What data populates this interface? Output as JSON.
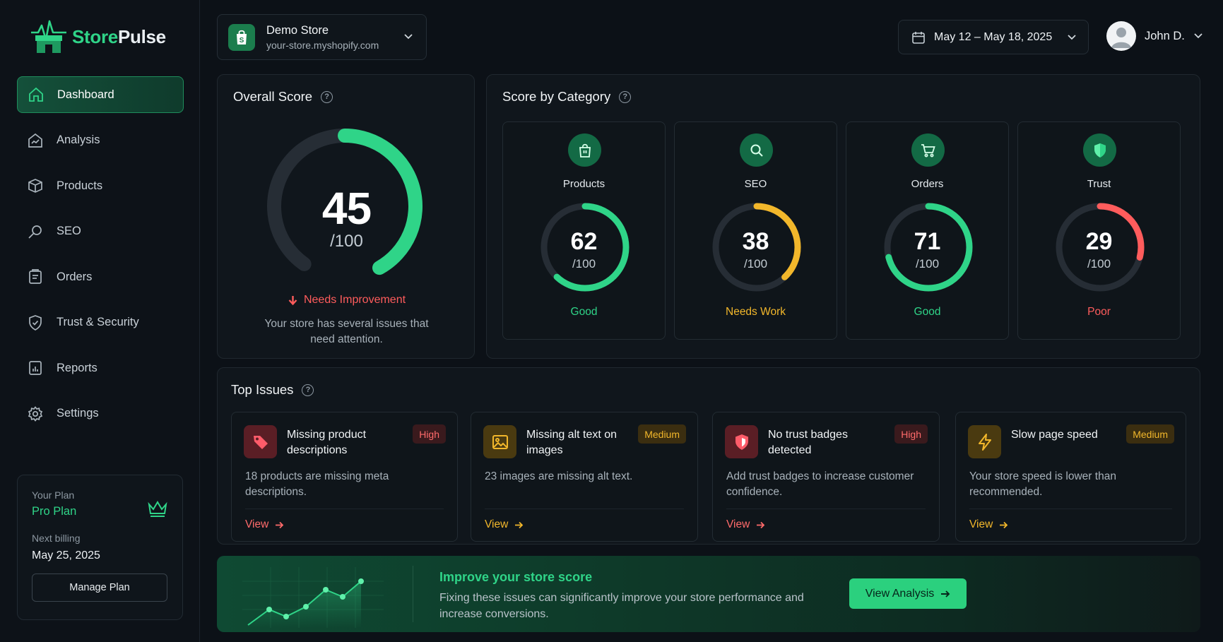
{
  "app": {
    "logo_part1": "Store",
    "logo_part2": "Pulse",
    "accent": "#2fd488"
  },
  "sidebar": {
    "items": [
      {
        "label": "Dashboard",
        "icon": "home-icon",
        "active": true
      },
      {
        "label": "Analysis",
        "icon": "analysis-icon"
      },
      {
        "label": "Products",
        "icon": "box-icon"
      },
      {
        "label": "SEO",
        "icon": "search-icon"
      },
      {
        "label": "Orders",
        "icon": "orders-icon"
      },
      {
        "label": "Trust & Security",
        "icon": "shield-icon"
      },
      {
        "label": "Reports",
        "icon": "reports-icon"
      },
      {
        "label": "Settings",
        "icon": "gear-icon"
      }
    ],
    "plan": {
      "label": "Your Plan",
      "name": "Pro Plan",
      "billing_label": "Next billing",
      "billing_date": "May 25, 2025",
      "manage_label": "Manage Plan"
    }
  },
  "header": {
    "store_name": "Demo Store",
    "store_url": "your-store.myshopify.com",
    "date_range": "May 12 – May 18, 2025",
    "user_name": "John D."
  },
  "overall": {
    "title": "Overall Score",
    "score": 45,
    "score_text": "45",
    "denominator": "/100",
    "status": "Needs Improvement",
    "description": "Your store has several issues that need attention."
  },
  "categories": {
    "title": "Score by Category",
    "items": [
      {
        "name": "Products",
        "score": 62,
        "score_text": "62",
        "denominator": "/100",
        "status": "Good",
        "color": "#2fd488",
        "icon": "bag-icon"
      },
      {
        "name": "SEO",
        "score": 38,
        "score_text": "38",
        "denominator": "/100",
        "status": "Needs Work",
        "color": "#f2b72b",
        "icon": "search-icon"
      },
      {
        "name": "Orders",
        "score": 71,
        "score_text": "71",
        "denominator": "/100",
        "status": "Good",
        "color": "#2fd488",
        "icon": "cart-icon"
      },
      {
        "name": "Trust",
        "score": 29,
        "score_text": "29",
        "denominator": "/100",
        "status": "Poor",
        "color": "#ff5c5c",
        "icon": "shield-icon"
      }
    ]
  },
  "issues": {
    "title": "Top Issues",
    "items": [
      {
        "title": "Missing product descriptions",
        "badge": "High",
        "description": "18 products are missing meta descriptions.",
        "view": "View",
        "icon": "tag-icon"
      },
      {
        "title": "Missing alt text on images",
        "badge": "Medium",
        "description": "23 images are missing alt text.",
        "view": "View",
        "icon": "image-icon"
      },
      {
        "title": "No trust badges detected",
        "badge": "High",
        "description": "Add trust badges to increase customer confidence.",
        "view": "View",
        "icon": "shield-icon"
      },
      {
        "title": "Slow page speed",
        "badge": "Medium",
        "description": "Your store speed is lower than recommended.",
        "view": "View",
        "icon": "bolt-icon"
      }
    ]
  },
  "banner": {
    "title": "Improve your store score",
    "description": "Fixing these issues can significantly improve your store performance and increase conversions.",
    "button": "View Analysis"
  }
}
